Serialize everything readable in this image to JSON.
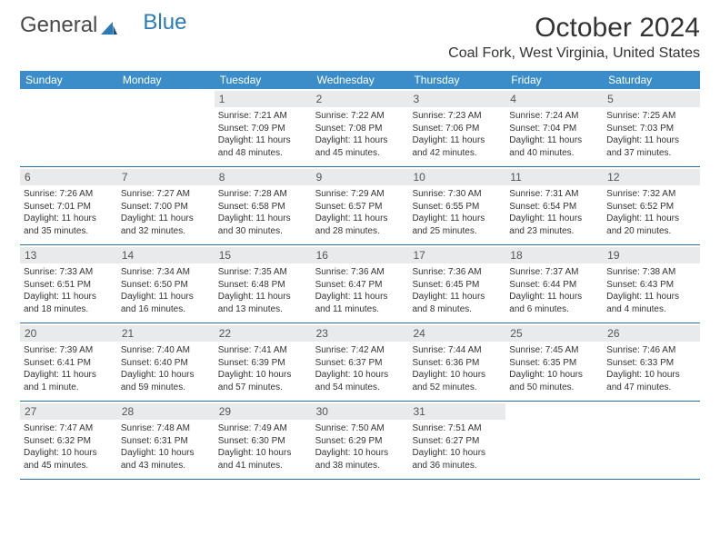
{
  "brand": {
    "word1": "General",
    "word2": "Blue",
    "logo_color": "#2a7ab8",
    "text_color": "#4a4a4a"
  },
  "title": "October 2024",
  "location": "Coal Fork, West Virginia, United States",
  "colors": {
    "header_bg": "#3a8dc9",
    "header_text": "#ffffff",
    "daynum_bg": "#e9eaeb",
    "daynum_text": "#555555",
    "body_text": "#333333",
    "rule": "#2a6ca3",
    "page_bg": "#ffffff"
  },
  "typography": {
    "title_fontsize": 30,
    "location_fontsize": 16,
    "dow_fontsize": 12,
    "daynum_fontsize": 12,
    "body_fontsize": 10
  },
  "days_of_week": [
    "Sunday",
    "Monday",
    "Tuesday",
    "Wednesday",
    "Thursday",
    "Friday",
    "Saturday"
  ],
  "weeks": [
    [
      {
        "empty": true
      },
      {
        "empty": true
      },
      {
        "num": "1",
        "sunrise": "Sunrise: 7:21 AM",
        "sunset": "Sunset: 7:09 PM",
        "day1": "Daylight: 11 hours",
        "day2": "and 48 minutes."
      },
      {
        "num": "2",
        "sunrise": "Sunrise: 7:22 AM",
        "sunset": "Sunset: 7:08 PM",
        "day1": "Daylight: 11 hours",
        "day2": "and 45 minutes."
      },
      {
        "num": "3",
        "sunrise": "Sunrise: 7:23 AM",
        "sunset": "Sunset: 7:06 PM",
        "day1": "Daylight: 11 hours",
        "day2": "and 42 minutes."
      },
      {
        "num": "4",
        "sunrise": "Sunrise: 7:24 AM",
        "sunset": "Sunset: 7:04 PM",
        "day1": "Daylight: 11 hours",
        "day2": "and 40 minutes."
      },
      {
        "num": "5",
        "sunrise": "Sunrise: 7:25 AM",
        "sunset": "Sunset: 7:03 PM",
        "day1": "Daylight: 11 hours",
        "day2": "and 37 minutes."
      }
    ],
    [
      {
        "num": "6",
        "sunrise": "Sunrise: 7:26 AM",
        "sunset": "Sunset: 7:01 PM",
        "day1": "Daylight: 11 hours",
        "day2": "and 35 minutes."
      },
      {
        "num": "7",
        "sunrise": "Sunrise: 7:27 AM",
        "sunset": "Sunset: 7:00 PM",
        "day1": "Daylight: 11 hours",
        "day2": "and 32 minutes."
      },
      {
        "num": "8",
        "sunrise": "Sunrise: 7:28 AM",
        "sunset": "Sunset: 6:58 PM",
        "day1": "Daylight: 11 hours",
        "day2": "and 30 minutes."
      },
      {
        "num": "9",
        "sunrise": "Sunrise: 7:29 AM",
        "sunset": "Sunset: 6:57 PM",
        "day1": "Daylight: 11 hours",
        "day2": "and 28 minutes."
      },
      {
        "num": "10",
        "sunrise": "Sunrise: 7:30 AM",
        "sunset": "Sunset: 6:55 PM",
        "day1": "Daylight: 11 hours",
        "day2": "and 25 minutes."
      },
      {
        "num": "11",
        "sunrise": "Sunrise: 7:31 AM",
        "sunset": "Sunset: 6:54 PM",
        "day1": "Daylight: 11 hours",
        "day2": "and 23 minutes."
      },
      {
        "num": "12",
        "sunrise": "Sunrise: 7:32 AM",
        "sunset": "Sunset: 6:52 PM",
        "day1": "Daylight: 11 hours",
        "day2": "and 20 minutes."
      }
    ],
    [
      {
        "num": "13",
        "sunrise": "Sunrise: 7:33 AM",
        "sunset": "Sunset: 6:51 PM",
        "day1": "Daylight: 11 hours",
        "day2": "and 18 minutes."
      },
      {
        "num": "14",
        "sunrise": "Sunrise: 7:34 AM",
        "sunset": "Sunset: 6:50 PM",
        "day1": "Daylight: 11 hours",
        "day2": "and 16 minutes."
      },
      {
        "num": "15",
        "sunrise": "Sunrise: 7:35 AM",
        "sunset": "Sunset: 6:48 PM",
        "day1": "Daylight: 11 hours",
        "day2": "and 13 minutes."
      },
      {
        "num": "16",
        "sunrise": "Sunrise: 7:36 AM",
        "sunset": "Sunset: 6:47 PM",
        "day1": "Daylight: 11 hours",
        "day2": "and 11 minutes."
      },
      {
        "num": "17",
        "sunrise": "Sunrise: 7:36 AM",
        "sunset": "Sunset: 6:45 PM",
        "day1": "Daylight: 11 hours",
        "day2": "and 8 minutes."
      },
      {
        "num": "18",
        "sunrise": "Sunrise: 7:37 AM",
        "sunset": "Sunset: 6:44 PM",
        "day1": "Daylight: 11 hours",
        "day2": "and 6 minutes."
      },
      {
        "num": "19",
        "sunrise": "Sunrise: 7:38 AM",
        "sunset": "Sunset: 6:43 PM",
        "day1": "Daylight: 11 hours",
        "day2": "and 4 minutes."
      }
    ],
    [
      {
        "num": "20",
        "sunrise": "Sunrise: 7:39 AM",
        "sunset": "Sunset: 6:41 PM",
        "day1": "Daylight: 11 hours",
        "day2": "and 1 minute."
      },
      {
        "num": "21",
        "sunrise": "Sunrise: 7:40 AM",
        "sunset": "Sunset: 6:40 PM",
        "day1": "Daylight: 10 hours",
        "day2": "and 59 minutes."
      },
      {
        "num": "22",
        "sunrise": "Sunrise: 7:41 AM",
        "sunset": "Sunset: 6:39 PM",
        "day1": "Daylight: 10 hours",
        "day2": "and 57 minutes."
      },
      {
        "num": "23",
        "sunrise": "Sunrise: 7:42 AM",
        "sunset": "Sunset: 6:37 PM",
        "day1": "Daylight: 10 hours",
        "day2": "and 54 minutes."
      },
      {
        "num": "24",
        "sunrise": "Sunrise: 7:44 AM",
        "sunset": "Sunset: 6:36 PM",
        "day1": "Daylight: 10 hours",
        "day2": "and 52 minutes."
      },
      {
        "num": "25",
        "sunrise": "Sunrise: 7:45 AM",
        "sunset": "Sunset: 6:35 PM",
        "day1": "Daylight: 10 hours",
        "day2": "and 50 minutes."
      },
      {
        "num": "26",
        "sunrise": "Sunrise: 7:46 AM",
        "sunset": "Sunset: 6:33 PM",
        "day1": "Daylight: 10 hours",
        "day2": "and 47 minutes."
      }
    ],
    [
      {
        "num": "27",
        "sunrise": "Sunrise: 7:47 AM",
        "sunset": "Sunset: 6:32 PM",
        "day1": "Daylight: 10 hours",
        "day2": "and 45 minutes."
      },
      {
        "num": "28",
        "sunrise": "Sunrise: 7:48 AM",
        "sunset": "Sunset: 6:31 PM",
        "day1": "Daylight: 10 hours",
        "day2": "and 43 minutes."
      },
      {
        "num": "29",
        "sunrise": "Sunrise: 7:49 AM",
        "sunset": "Sunset: 6:30 PM",
        "day1": "Daylight: 10 hours",
        "day2": "and 41 minutes."
      },
      {
        "num": "30",
        "sunrise": "Sunrise: 7:50 AM",
        "sunset": "Sunset: 6:29 PM",
        "day1": "Daylight: 10 hours",
        "day2": "and 38 minutes."
      },
      {
        "num": "31",
        "sunrise": "Sunrise: 7:51 AM",
        "sunset": "Sunset: 6:27 PM",
        "day1": "Daylight: 10 hours",
        "day2": "and 36 minutes."
      },
      {
        "empty": true
      },
      {
        "empty": true
      }
    ]
  ]
}
